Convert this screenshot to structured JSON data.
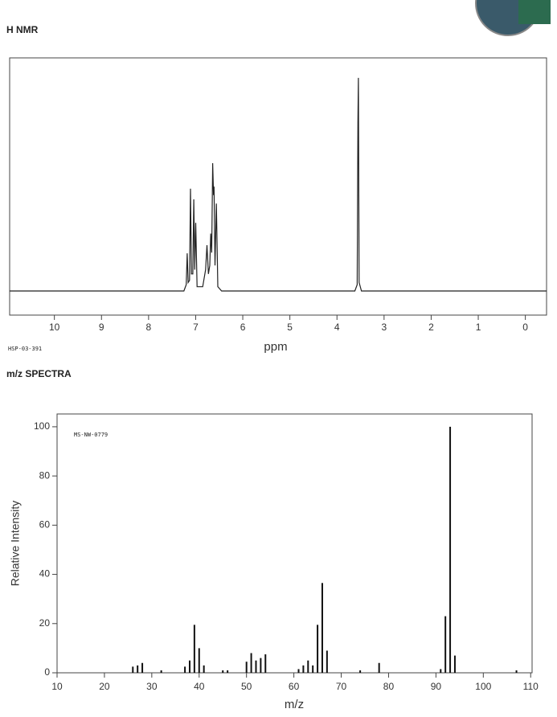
{
  "chart_data": [
    {
      "type": "line",
      "title": "H NMR",
      "xlabel": "ppm",
      "annotation": "HSP-03-391",
      "xlim": [
        10.95,
        -0.45
      ],
      "ylim": [
        -11.3,
        109.4
      ],
      "xticks": [
        10,
        9,
        8,
        7,
        6,
        5,
        4,
        3,
        2,
        1,
        0
      ],
      "color": "#222222",
      "x": [
        10.95,
        7.25,
        7.2,
        7.18,
        7.16,
        7.13,
        7.11,
        7.09,
        7.06,
        7.04,
        7.02,
        7.0,
        6.97,
        6.85,
        6.79,
        6.76,
        6.73,
        6.7,
        6.68,
        6.66,
        6.64,
        6.62,
        6.61,
        6.59,
        6.56,
        6.53,
        6.45,
        3.62,
        3.57,
        3.555,
        3.545,
        3.53,
        3.48,
        -0.45
      ],
      "values": [
        0,
        0,
        3,
        17.7,
        4,
        5,
        48,
        8,
        8,
        43,
        10,
        32,
        2,
        2,
        10,
        21.5,
        8,
        12,
        27,
        18,
        60,
        45,
        49,
        12,
        41,
        2,
        0,
        0,
        3,
        79,
        100,
        4,
        0,
        0
      ]
    },
    {
      "type": "bar",
      "title": "m/z SPECTRA",
      "xlabel": "m/z",
      "ylabel": "Relative Intensity",
      "annotation": "MS-NW-0779",
      "xlim": [
        10,
        110.3
      ],
      "ylim": [
        0,
        105.2
      ],
      "xticks": [
        10,
        20,
        30,
        40,
        50,
        60,
        70,
        80,
        90,
        100,
        110
      ],
      "yticks": [
        0,
        20,
        40,
        60,
        80,
        100
      ],
      "color": "#111111",
      "x": [
        26,
        27,
        28,
        32,
        37,
        38,
        39,
        40,
        41,
        45,
        46,
        50,
        51,
        52,
        53,
        54,
        61,
        62,
        63,
        64,
        65,
        66,
        67,
        74,
        78,
        91,
        92,
        93,
        94,
        107
      ],
      "values": [
        2.5,
        3,
        4,
        1,
        2.5,
        5,
        19.5,
        10,
        3,
        1,
        1,
        4.5,
        8,
        5,
        6,
        7.5,
        1.5,
        3,
        5,
        3,
        19.5,
        36.5,
        9,
        1,
        4,
        1.5,
        23,
        100,
        7,
        1
      ]
    }
  ]
}
